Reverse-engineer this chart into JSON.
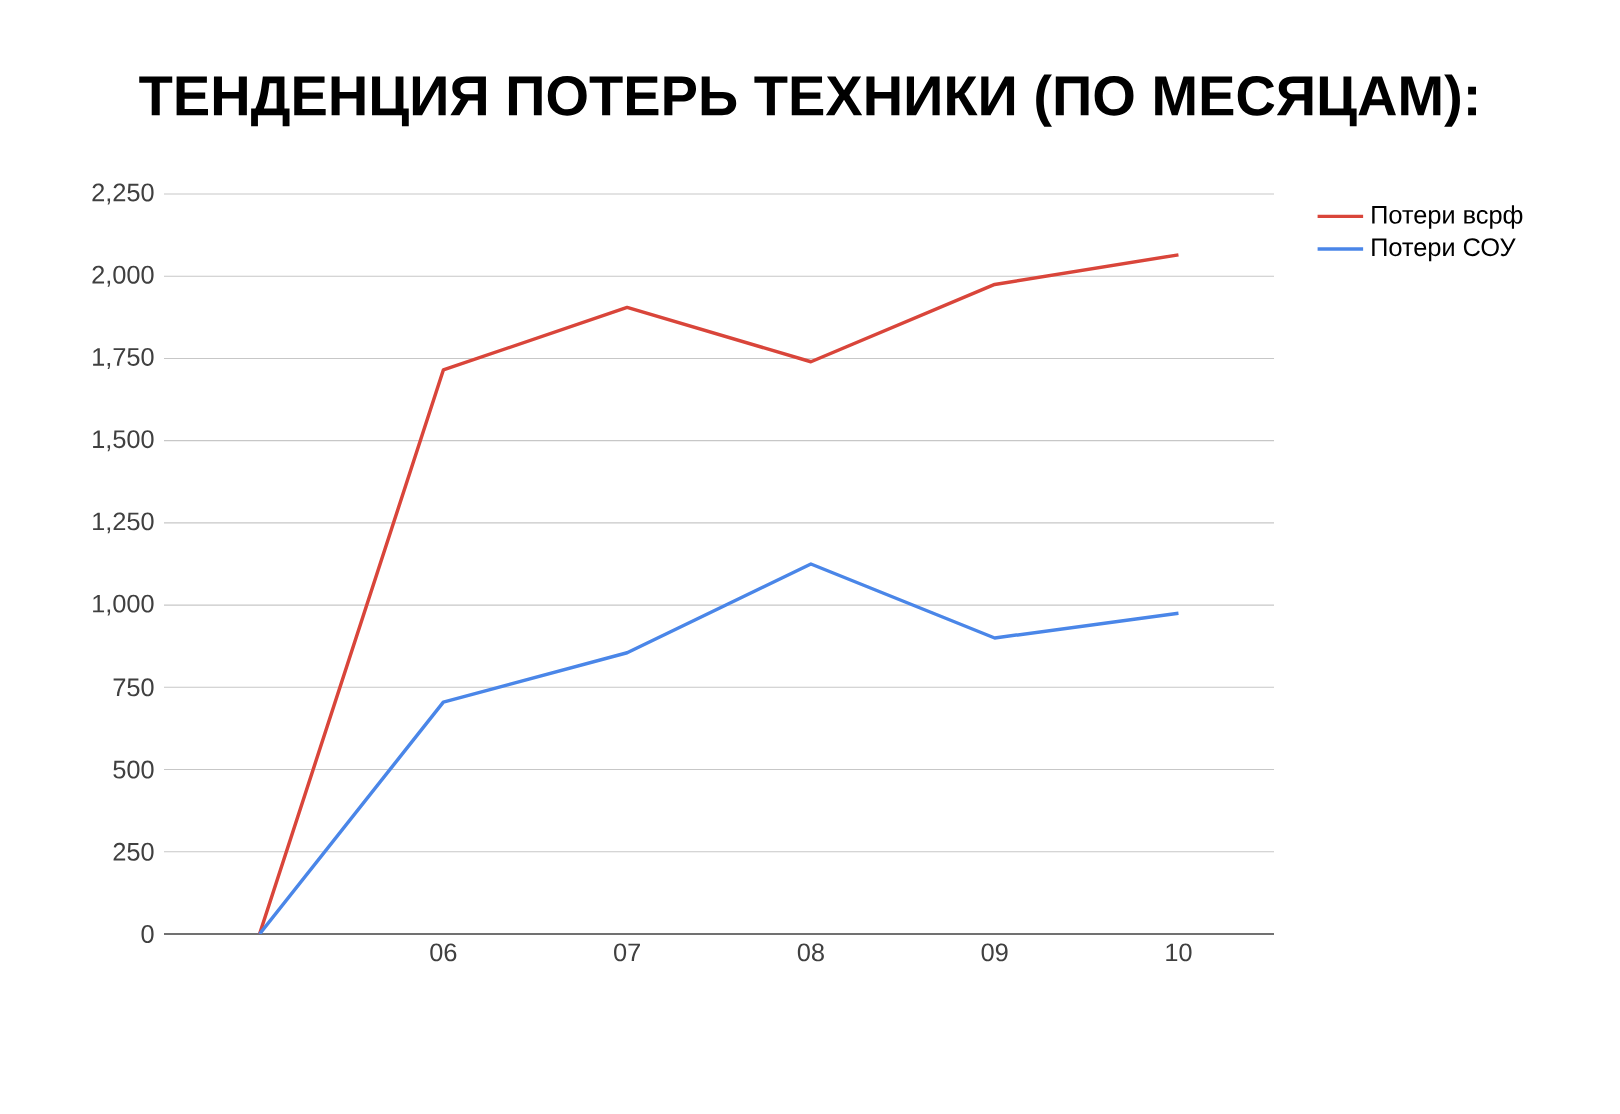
{
  "chart_data": {
    "type": "line",
    "title": "ТЕНДЕНЦИЯ ПОТЕРЬ ТЕХНИКИ (ПО МЕСЯЦАМ):",
    "categories": [
      null,
      "06",
      "07",
      "08",
      "09",
      "10"
    ],
    "series": [
      {
        "name": "Потери всрф",
        "color": "#d9453a",
        "values": [
          0,
          1715,
          1905,
          1740,
          1975,
          2065
        ]
      },
      {
        "name": "Потери СОУ",
        "color": "#4a86e8",
        "values": [
          0,
          705,
          855,
          1125,
          900,
          975
        ]
      }
    ],
    "ylim": [
      0,
      2250
    ],
    "yticks": [
      0,
      250,
      500,
      750,
      {
        "value": 1000,
        "label": "1,000"
      },
      {
        "value": 1250,
        "label": "1,250"
      },
      {
        "value": 1500,
        "label": "1,500"
      },
      {
        "value": 1750,
        "label": "1,750"
      },
      {
        "value": 2000,
        "label": "2,000"
      },
      {
        "value": 2250,
        "label": "2,250"
      }
    ],
    "grid": "y",
    "legend": "top right",
    "marker": "none",
    "line_style": "solid"
  }
}
